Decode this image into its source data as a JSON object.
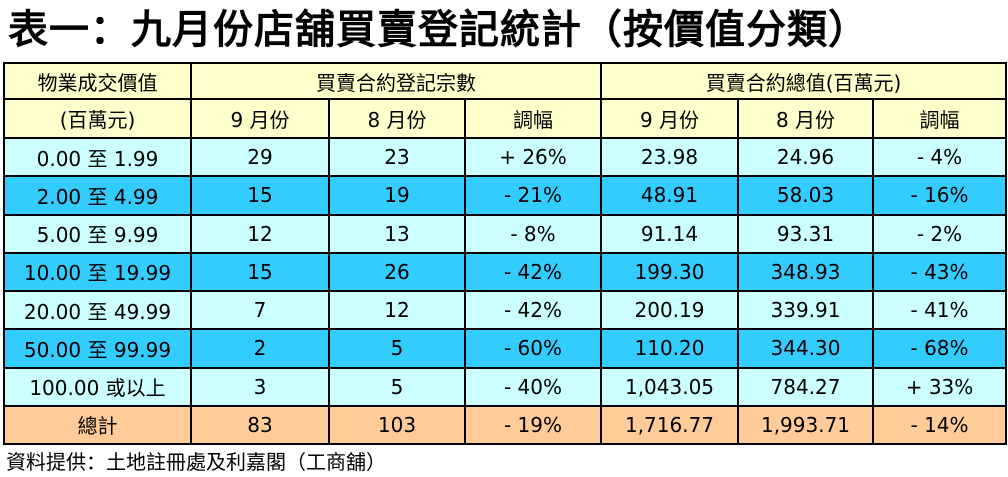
{
  "title": "表一：九月份店舖買賣登記統計（按價值分類）",
  "header": {
    "price_col": "物業成交價值",
    "price_unit": "(百萬元)",
    "count_group": "買賣合約登記宗數",
    "value_group": "買賣合約總值(百萬元)",
    "sep": "9 月份",
    "aug": "8 月份",
    "change": "調幅"
  },
  "rows": [
    {
      "range": "0.00 至 1.99",
      "c_sep": "29",
      "c_aug": "23",
      "c_chg": "+ 26%",
      "v_sep": "23.98",
      "v_aug": "24.96",
      "v_chg": "- 4%"
    },
    {
      "range": "2.00 至 4.99",
      "c_sep": "15",
      "c_aug": "19",
      "c_chg": "- 21%",
      "v_sep": "48.91",
      "v_aug": "58.03",
      "v_chg": "- 16%"
    },
    {
      "range": "5.00 至 9.99",
      "c_sep": "12",
      "c_aug": "13",
      "c_chg": "- 8%",
      "v_sep": "91.14",
      "v_aug": "93.31",
      "v_chg": "- 2%"
    },
    {
      "range": "10.00 至 19.99",
      "c_sep": "15",
      "c_aug": "26",
      "c_chg": "- 42%",
      "v_sep": "199.30",
      "v_aug": "348.93",
      "v_chg": "- 43%"
    },
    {
      "range": "20.00 至 49.99",
      "c_sep": "7",
      "c_aug": "12",
      "c_chg": "- 42%",
      "v_sep": "200.19",
      "v_aug": "339.91",
      "v_chg": "- 41%"
    },
    {
      "range": "50.00 至 99.99",
      "c_sep": "2",
      "c_aug": "5",
      "c_chg": "- 60%",
      "v_sep": "110.20",
      "v_aug": "344.30",
      "v_chg": "- 68%"
    },
    {
      "range": "100.00 或以上",
      "c_sep": "3",
      "c_aug": "5",
      "c_chg": "- 40%",
      "v_sep": "1,043.05",
      "v_aug": "784.27",
      "v_chg": "+ 33%"
    }
  ],
  "total": {
    "range": "總計",
    "c_sep": "83",
    "c_aug": "103",
    "c_chg": "- 19%",
    "v_sep": "1,716.77",
    "v_aug": "1,993.71",
    "v_chg": "- 14%"
  },
  "footer": "資料提供：土地註冊處及利嘉閣（工商舖）",
  "colors": {
    "header": "#ffffcc",
    "row_light": "#ccffff",
    "row_dark": "#33ccff",
    "total": "#ffcc99"
  }
}
